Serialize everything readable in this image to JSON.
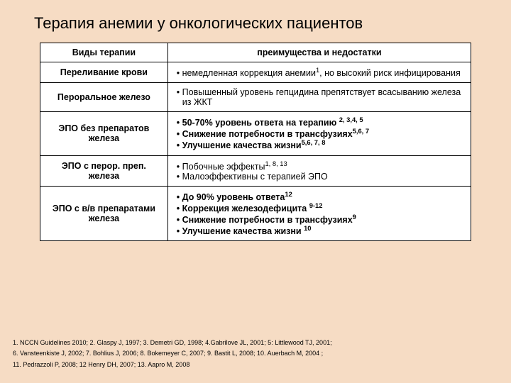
{
  "title": "Терапия анемии у онкологических пациентов",
  "colors": {
    "background": "#f6dcc4",
    "table_bg": "#ffffff",
    "border": "#000000",
    "text": "#000000"
  },
  "table": {
    "header": {
      "c1": "Виды терапии",
      "c2": "преимущества и недостатки"
    },
    "rows": [
      {
        "c1": "Переливание крови",
        "c2_html": "• немедленная коррекция  анемии<sup>1</sup>,  но высокий риск инфицирования",
        "bold": false
      },
      {
        "c1": "Пероральное железо",
        "c2_html": "• Повышенный уровень гепцидина препятствует всасыванию железа из ЖКТ",
        "bold": false
      },
      {
        "c1": "ЭПО без  препаратов железа",
        "c2_html": "• 50-70% уровень ответа на терапию <sup>2, 3,4, 5</sup>\n• Снижение потребности в трансфузиях<sup>5,6, 7</sup>\n• Улучшение качества жизни<sup>5,6, 7, 8</sup>",
        "bold": true
      },
      {
        "c1": "ЭПО с перор. преп. железа",
        "c2_html": "• Побочные эффекты<sup>1, 8, 13</sup>\n• Малоэффективны с терапией ЭПО",
        "bold": false
      },
      {
        "c1": "ЭПО с в/в препаратами железа",
        "c2_html": "• До 90% уровень ответа<sup>12</sup>\n• Коррекция железодефицита <sup>9-12</sup>\n• Снижение потребности в трансфузиях<sup>9</sup>\n• Улучшение качества жизни <sup>10</sup>",
        "bold": true
      }
    ]
  },
  "footnotes": [
    "1. NCCN Guidelines 2010; 2. Glaspy J, 1997; 3. Demetri GD, 1998; 4.Gabrilove JL, 2001; 5: Littlewood TJ, 2001;",
    "6. Vansteenkiste J, 2002; 7. Bohlius J, 2006; 8. Bokemeyer C, 2007; 9. Bastit L, 2008; 10. Auerbach M, 2004 ;",
    "11. Pedrazzoli P, 2008; 12 Henry DH, 2007; 13. Aapro M, 2008"
  ]
}
